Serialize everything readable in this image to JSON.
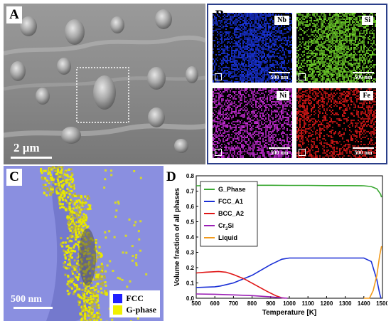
{
  "panel_a": {
    "letter": "A",
    "scale_label": "2 µm"
  },
  "panel_b": {
    "letter": "B",
    "maps": [
      {
        "element": "Nb",
        "scale": "500 nm",
        "color": "#1a35e0"
      },
      {
        "element": "Si",
        "scale": "500 nm",
        "color": "#6fd22a"
      },
      {
        "element": "Ni",
        "scale": "500 nm",
        "color": "#c62bd6"
      },
      {
        "element": "Fe",
        "scale": "500 nm",
        "color": "#e01818"
      }
    ]
  },
  "panel_c": {
    "letter": "C",
    "scale_label": "500 nm",
    "legend": [
      {
        "label": "FCC",
        "color": "#2020ff"
      },
      {
        "label": "G-phase",
        "color": "#f0f000"
      }
    ]
  },
  "panel_d": {
    "letter": "D"
  },
  "chart_data": {
    "type": "line",
    "title": "",
    "xlabel": "Temperature [K]",
    "ylabel": "Volume fraction of all phases",
    "xlim": [
      500,
      1500
    ],
    "ylim": [
      0,
      0.8
    ],
    "xticks": [
      500,
      600,
      700,
      800,
      900,
      1000,
      1100,
      1200,
      1300,
      1400,
      1500
    ],
    "yticks": [
      0.0,
      0.1,
      0.2,
      0.3,
      0.4,
      0.5,
      0.6,
      0.7,
      0.8
    ],
    "ytick_labels": [
      "0.0",
      "0.1",
      "0.2",
      "0.3",
      "0.4",
      "0.5",
      "0.6",
      "0.7",
      "0.8"
    ],
    "grid": false,
    "legend_position": "top-left",
    "series": [
      {
        "name": "G_Phase",
        "color": "#3aa832",
        "x": [
          500,
          600,
          700,
          800,
          900,
          1000,
          1100,
          1200,
          1300,
          1400,
          1440,
          1470,
          1490,
          1495
        ],
        "y": [
          0.735,
          0.737,
          0.738,
          0.738,
          0.738,
          0.737,
          0.737,
          0.736,
          0.736,
          0.735,
          0.73,
          0.715,
          0.68,
          0.66
        ]
      },
      {
        "name": "FCC_A1",
        "color": "#1a2fd6",
        "x": [
          500,
          600,
          630,
          700,
          800,
          900,
          960,
          1000,
          1100,
          1200,
          1300,
          1400,
          1440,
          1470,
          1485,
          1492
        ],
        "y": [
          0.07,
          0.075,
          0.08,
          0.1,
          0.15,
          0.22,
          0.255,
          0.263,
          0.263,
          0.263,
          0.263,
          0.263,
          0.24,
          0.12,
          0.03,
          0.0
        ]
      },
      {
        "name": "BCC_A2",
        "color": "#e01616",
        "x": [
          500,
          550,
          620,
          660,
          700,
          760,
          820,
          880,
          930,
          960,
          975
        ],
        "y": [
          0.165,
          0.17,
          0.175,
          0.17,
          0.155,
          0.125,
          0.085,
          0.045,
          0.015,
          0.003,
          0.0
        ]
      },
      {
        "name": "Cr3Si",
        "label_main": "Cr",
        "label_sub": "3",
        "label_tail": "Si",
        "color": "#9b1fb5",
        "x": [
          500,
          600,
          700,
          800,
          900,
          960,
          990
        ],
        "y": [
          0.028,
          0.026,
          0.022,
          0.017,
          0.009,
          0.003,
          0.0
        ]
      },
      {
        "name": "Liquid",
        "color": "#f29a1c",
        "x": [
          1400,
          1430,
          1450,
          1470,
          1485,
          1495
        ],
        "y": [
          0.0,
          0.0,
          0.05,
          0.15,
          0.28,
          0.34
        ]
      }
    ]
  }
}
